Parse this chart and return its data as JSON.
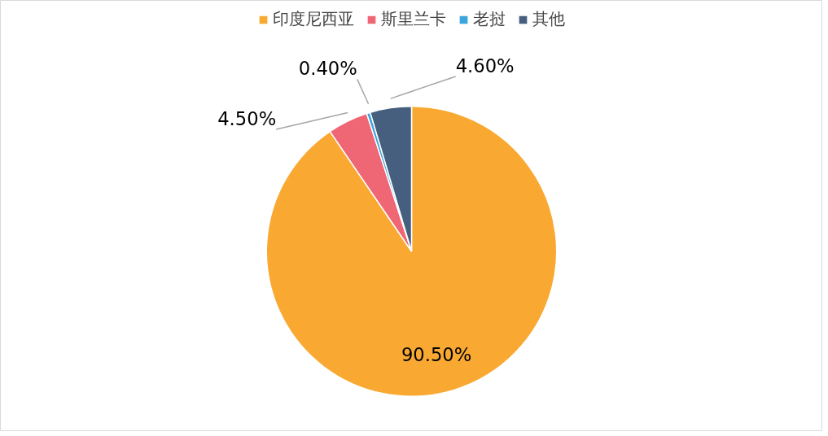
{
  "chart_data": {
    "type": "pie",
    "categories": [
      "印度尼西亚",
      "斯里兰卡",
      "老挝",
      "其他"
    ],
    "values": [
      90.5,
      4.5,
      0.4,
      4.6
    ],
    "colors": [
      "#f9a932",
      "#ef6674",
      "#3aa5dc",
      "#465f7e"
    ],
    "value_labels": [
      "90.50%",
      "4.50%",
      "0.40%",
      "4.60%"
    ],
    "legend": "top"
  }
}
